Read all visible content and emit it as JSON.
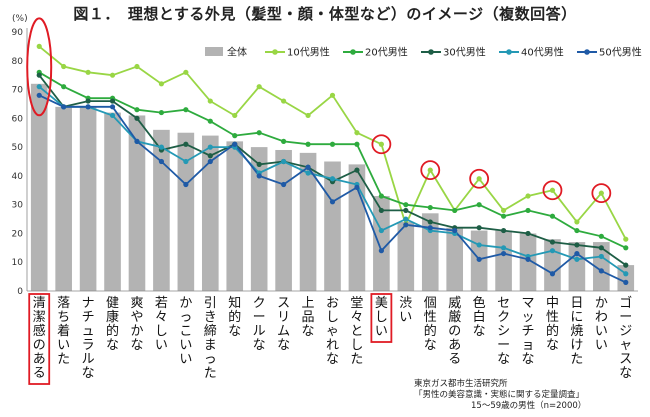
{
  "title": "図１．　理想とする外見（髪型・顔・体型など）のイメージ（複数回答）",
  "source": {
    "line1": "東京ガス都市生活研究所",
    "line2": "「男性の美容意識・実態に関する定量調査」",
    "line3": "15～59歳の男性（n=2000）"
  },
  "colors": {
    "bar": "#b3b3b3",
    "s10": "#99d645",
    "s20": "#2eab3e",
    "s30": "#1e5e46",
    "s40": "#2499b5",
    "s50": "#1f5aa6",
    "highlight": "#e01b24"
  },
  "chart_data": {
    "type": "bar",
    "ylabel": "(%)",
    "ylim": [
      0,
      90
    ],
    "yticks": [
      0,
      10,
      20,
      30,
      40,
      50,
      60,
      70,
      80,
      90
    ],
    "categories": [
      "清潔感のある",
      "落ち着いた",
      "ナチュラルな",
      "健康的な",
      "爽やかな",
      "若々しい",
      "かっこいい",
      "引き締まった",
      "知的な",
      "クールな",
      "スリムな",
      "上品な",
      "おしゃれな",
      "堂々とした",
      "美しい",
      "渋い",
      "個性的な",
      "威厳のある",
      "色白な",
      "セクシーな",
      "マッチョな",
      "中性的な",
      "日に焼けた",
      "かわいい",
      "ゴージャスな"
    ],
    "series": [
      {
        "name": "全体",
        "type": "bar",
        "values": [
          72,
          64,
          64,
          62,
          61,
          56,
          55,
          54,
          52,
          50,
          49,
          48,
          45,
          44,
          33,
          24,
          27,
          22,
          21,
          21,
          20,
          18,
          17,
          17,
          9
        ]
      },
      {
        "name": "10代男性",
        "type": "line",
        "values": [
          85,
          78,
          76,
          75,
          78,
          72,
          76,
          66,
          61,
          71,
          66,
          61,
          68,
          55,
          51,
          23,
          42,
          28,
          39,
          28,
          33,
          35,
          24,
          34,
          18
        ]
      },
      {
        "name": "20代男性",
        "type": "line",
        "values": [
          76,
          71,
          67,
          67,
          63,
          62,
          63,
          59,
          54,
          55,
          52,
          51,
          51,
          51,
          33,
          30,
          29,
          28,
          30,
          26,
          28,
          26,
          21,
          19,
          15
        ]
      },
      {
        "name": "30代男性",
        "type": "line",
        "values": [
          75,
          64,
          66,
          66,
          60,
          49,
          51,
          47,
          51,
          44,
          45,
          43,
          38,
          42,
          28,
          28,
          24,
          22,
          22,
          21,
          20,
          17,
          16,
          15,
          9
        ]
      },
      {
        "name": "40代男性",
        "type": "line",
        "values": [
          71,
          64,
          64,
          61,
          52,
          50,
          45,
          50,
          50,
          41,
          45,
          41,
          39,
          37,
          21,
          25,
          21,
          20,
          16,
          15,
          12,
          14,
          11,
          12,
          6
        ]
      },
      {
        "name": "50代男性",
        "type": "line",
        "values": [
          68,
          64,
          64,
          64,
          52,
          45,
          37,
          45,
          51,
          40,
          37,
          43,
          31,
          36,
          14,
          23,
          22,
          21,
          11,
          13,
          11,
          6,
          13,
          7,
          3
        ]
      }
    ],
    "highlighted_categories": [
      "清潔感のある",
      "美しい"
    ],
    "circled_points": [
      {
        "series": "10代男性",
        "category": "美しい"
      },
      {
        "series": "10代男性",
        "category": "個性的な"
      },
      {
        "series": "10代男性",
        "category": "色白な"
      },
      {
        "series": "10代男性",
        "category": "中性的な"
      },
      {
        "series": "10代男性",
        "category": "かわいい"
      }
    ],
    "legend_position": "top-right",
    "grid": false
  }
}
